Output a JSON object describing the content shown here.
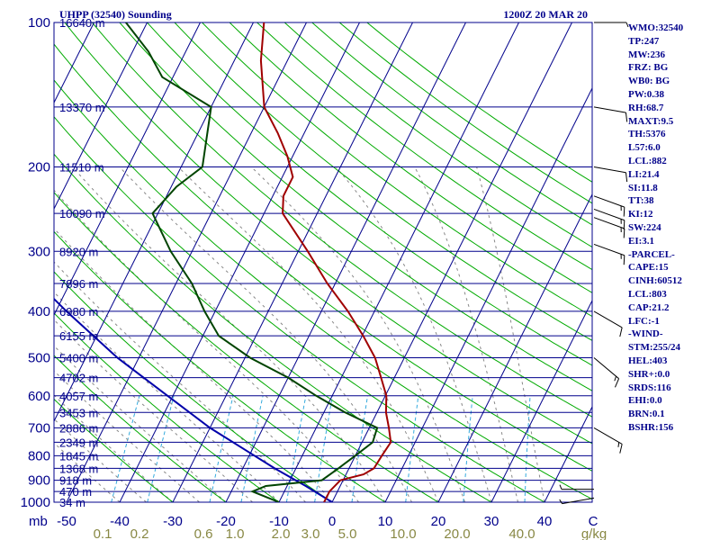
{
  "chart_data": {
    "type": "skew-t",
    "title_left": "UHPP (32540) Sounding",
    "title_right": "1200Z 20 MAR 20",
    "pressure_levels": [
      {
        "label": "100",
        "p": 100
      },
      {
        "label": "200",
        "p": 200
      },
      {
        "label": "300",
        "p": 300
      },
      {
        "label": "400",
        "p": 400
      },
      {
        "label": "500",
        "p": 500
      },
      {
        "label": "600",
        "p": 600
      },
      {
        "label": "700",
        "p": 700
      },
      {
        "label": "800",
        "p": 800
      },
      {
        "label": "900",
        "p": 900
      },
      {
        "label": "1000",
        "p": 1000
      }
    ],
    "pressure_unit_label": "mb",
    "height_labels": [
      {
        "label": "16640 m",
        "p": 100
      },
      {
        "label": "13370 m",
        "p": 150
      },
      {
        "label": "11510 m",
        "p": 200
      },
      {
        "label": "10090 m",
        "p": 250
      },
      {
        "label": "8920 m",
        "p": 300
      },
      {
        "label": "7896 m",
        "p": 350
      },
      {
        "label": "6980 m",
        "p": 400
      },
      {
        "label": "6155 m",
        "p": 450
      },
      {
        "label": "5400 m",
        "p": 500
      },
      {
        "label": "4702 m",
        "p": 550
      },
      {
        "label": "4057 m",
        "p": 600
      },
      {
        "label": "3453 m",
        "p": 650
      },
      {
        "label": "2886 m",
        "p": 700
      },
      {
        "label": "2349 m",
        "p": 750
      },
      {
        "label": "1845 m",
        "p": 800
      },
      {
        "label": "1368 m",
        "p": 850
      },
      {
        "label": "918 m",
        "p": 900
      },
      {
        "label": "470 m",
        "p": 950
      },
      {
        "label": "34 m",
        "p": 1000
      }
    ],
    "temperature_ticks": [
      {
        "label": "-50",
        "t": -50
      },
      {
        "label": "-40",
        "t": -40
      },
      {
        "label": "-30",
        "t": -30
      },
      {
        "label": "-20",
        "t": -20
      },
      {
        "label": "-10",
        "t": -10
      },
      {
        "label": "0",
        "t": 0
      },
      {
        "label": "10",
        "t": 10
      },
      {
        "label": "20",
        "t": 20
      },
      {
        "label": "30",
        "t": 30
      },
      {
        "label": "40",
        "t": 40
      }
    ],
    "temperature_unit_label": "C",
    "mixing_ratio_ticks": [
      "0.1",
      "0.2",
      "0.6",
      "1.0",
      "2.0",
      "3.0",
      "5.0",
      "10.0",
      "20.0",
      "40.0"
    ],
    "mixing_ratio_unit_label": "g/kg",
    "temperature_profile": [
      {
        "p": 1000,
        "t": -1.5
      },
      {
        "p": 950,
        "t": -1.5
      },
      {
        "p": 900,
        "t": -0.5
      },
      {
        "p": 875,
        "t": 3.3
      },
      {
        "p": 850,
        "t": 4.7
      },
      {
        "p": 800,
        "t": 5.0
      },
      {
        "p": 750,
        "t": 5.4
      },
      {
        "p": 700,
        "t": 3.7
      },
      {
        "p": 650,
        "t": 1.7
      },
      {
        "p": 600,
        "t": 0.2
      },
      {
        "p": 550,
        "t": -2.5
      },
      {
        "p": 500,
        "t": -5.5
      },
      {
        "p": 450,
        "t": -9.8
      },
      {
        "p": 400,
        "t": -15.0
      },
      {
        "p": 350,
        "t": -21.5
      },
      {
        "p": 300,
        "t": -28.2
      },
      {
        "p": 250,
        "t": -36.5
      },
      {
        "p": 230,
        "t": -38.0
      },
      {
        "p": 210,
        "t": -38.0
      },
      {
        "p": 190,
        "t": -41.0
      },
      {
        "p": 170,
        "t": -45.0
      },
      {
        "p": 150,
        "t": -50.0
      },
      {
        "p": 120,
        "t": -55.0
      },
      {
        "p": 100,
        "t": -58.0
      }
    ],
    "dewpoint_profile": [
      {
        "p": 1000,
        "t": -10.0
      },
      {
        "p": 950,
        "t": -16.0
      },
      {
        "p": 925,
        "t": -14.0
      },
      {
        "p": 900,
        "t": -4.0
      },
      {
        "p": 850,
        "t": -2.0
      },
      {
        "p": 800,
        "t": 0.0
      },
      {
        "p": 750,
        "t": 2.0
      },
      {
        "p": 700,
        "t": 1.5
      },
      {
        "p": 650,
        "t": -6.0
      },
      {
        "p": 600,
        "t": -13.0
      },
      {
        "p": 550,
        "t": -20.0
      },
      {
        "p": 500,
        "t": -29.0
      },
      {
        "p": 450,
        "t": -37.0
      },
      {
        "p": 400,
        "t": -42.0
      },
      {
        "p": 350,
        "t": -47.0
      },
      {
        "p": 300,
        "t": -54.0
      },
      {
        "p": 250,
        "t": -61.0
      },
      {
        "p": 220,
        "t": -59.0
      },
      {
        "p": 200,
        "t": -56.0
      },
      {
        "p": 150,
        "t": -60.0
      },
      {
        "p": 130,
        "t": -72.0
      },
      {
        "p": 115,
        "t": -77.0
      },
      {
        "p": 100,
        "t": -84.0
      }
    ],
    "parcel_profile": [
      {
        "p": 1000,
        "t": 0.0
      },
      {
        "p": 925,
        "t": -6.5
      },
      {
        "p": 850,
        "t": -14.0
      },
      {
        "p": 800,
        "t": -19.0
      },
      {
        "p": 700,
        "t": -30.0
      },
      {
        "p": 600,
        "t": -41.0
      },
      {
        "p": 500,
        "t": -54.0
      },
      {
        "p": 400,
        "t": -68.0
      },
      {
        "p": 300,
        "t": -85.0
      },
      {
        "p": 250,
        "t": -95.0
      },
      {
        "p": 200,
        "t": -106.0
      },
      {
        "p": 150,
        "t": -118.0
      },
      {
        "p": 120,
        "t": -127.0
      }
    ],
    "wind_barbs": [
      {
        "p": 100,
        "dir": 270,
        "kt": 5
      },
      {
        "p": 150,
        "dir": 280,
        "kt": 10
      },
      {
        "p": 200,
        "dir": 280,
        "kt": 10
      },
      {
        "p": 230,
        "dir": 290,
        "kt": 15
      },
      {
        "p": 245,
        "dir": 290,
        "kt": 15
      },
      {
        "p": 255,
        "dir": 290,
        "kt": 15
      },
      {
        "p": 290,
        "dir": 290,
        "kt": 15
      },
      {
        "p": 400,
        "dir": 300,
        "kt": 10
      },
      {
        "p": 500,
        "dir": 310,
        "kt": 15
      },
      {
        "p": 700,
        "dir": 300,
        "kt": 15
      },
      {
        "p": 940,
        "dir": 90,
        "kt": 5
      },
      {
        "p": 980,
        "dir": 80,
        "kt": 5
      }
    ],
    "indices": [
      "WMO:32540",
      "TP:247",
      "MW:236",
      "FRZ: BG",
      "WB0: BG",
      "PW:0.38",
      "RH:68.7",
      "MAXT:9.5",
      "TH:5376",
      "L57:6.0",
      "LCL:882",
      "LI:21.4",
      "SI:11.8",
      "TT:38",
      "KI:12",
      "SW:224",
      "EI:3.1",
      "-PARCEL-",
      "CAPE:15",
      "CINH:60512",
      "LCL:803",
      "CAP:21.2",
      "LFC:-1",
      "-WIND-",
      "STM:255/24",
      "HEL:403",
      "SHR+:0.0",
      "SRDS:116",
      "EHI:0.0",
      "BRN:0.1",
      "BSHR:156"
    ],
    "colors": {
      "isobar": "#00008b",
      "isotherm": "#00008b",
      "dry_adiabat": "#00aa00",
      "moist_adiabat": "#888888",
      "mixing_ratio": "#33aadd",
      "temperature": "#a00000",
      "dewpoint": "#004400",
      "parcel": "#0000aa",
      "labels": "#00008b",
      "mixing_labels": "#888844"
    }
  }
}
